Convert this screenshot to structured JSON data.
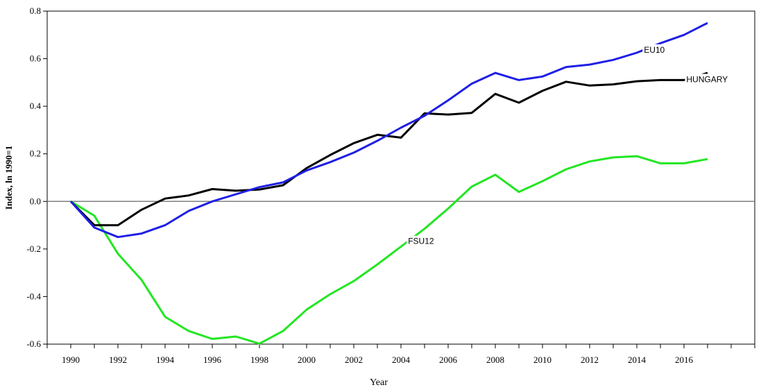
{
  "chart_data": {
    "type": "line",
    "xlabel": "Year",
    "ylabel": "Index, ln 1990=1",
    "xlim": [
      1989,
      2019
    ],
    "ylim": [
      -0.6,
      0.8
    ],
    "x_ticks": [
      "1990",
      "1992",
      "1994",
      "1996",
      "1998",
      "2000",
      "2002",
      "2004",
      "2006",
      "2008",
      "2010",
      "2012",
      "2014",
      "2016"
    ],
    "y_ticks": [
      "0.8",
      "0.6",
      "0.4",
      "0.2",
      "0.0",
      "-0.2",
      "-0.4",
      "-0.6"
    ],
    "reference_line_y": 0.0,
    "grid": false,
    "x": [
      1990,
      1991,
      1992,
      1993,
      1994,
      1995,
      1996,
      1997,
      1998,
      1999,
      2000,
      2001,
      2002,
      2003,
      2004,
      2005,
      2006,
      2007,
      2008,
      2009,
      2010,
      2011,
      2012,
      2013,
      2014,
      2015,
      2016,
      2017
    ],
    "series": [
      {
        "name": "EU10",
        "color": "#1f1fe6",
        "values": [
          0.0,
          -0.11,
          -0.15,
          -0.135,
          -0.1,
          -0.04,
          0.0,
          0.03,
          0.06,
          0.08,
          0.13,
          0.165,
          0.205,
          0.255,
          0.31,
          0.36,
          0.425,
          0.495,
          0.54,
          0.51,
          0.525,
          0.565,
          0.575,
          0.595,
          0.625,
          0.665,
          0.7,
          0.75
        ]
      },
      {
        "name": "HUNGARY",
        "color": "#000000",
        "values": [
          0.0,
          -0.1,
          -0.1,
          -0.035,
          0.012,
          0.025,
          0.052,
          0.045,
          0.05,
          0.068,
          0.14,
          0.195,
          0.245,
          0.28,
          0.268,
          0.37,
          0.365,
          0.372,
          0.452,
          0.415,
          0.465,
          0.503,
          0.487,
          0.492,
          0.505,
          0.51,
          0.51,
          0.54
        ]
      },
      {
        "name": "FSU12",
        "color": "#22e622",
        "values": [
          0.0,
          -0.06,
          -0.22,
          -0.33,
          -0.485,
          -0.545,
          -0.578,
          -0.568,
          -0.598,
          -0.545,
          -0.455,
          -0.39,
          -0.335,
          -0.265,
          -0.19,
          -0.115,
          -0.03,
          0.062,
          0.112,
          0.04,
          0.085,
          0.135,
          0.168,
          0.185,
          0.19,
          0.16,
          0.16,
          0.178
        ]
      }
    ]
  }
}
